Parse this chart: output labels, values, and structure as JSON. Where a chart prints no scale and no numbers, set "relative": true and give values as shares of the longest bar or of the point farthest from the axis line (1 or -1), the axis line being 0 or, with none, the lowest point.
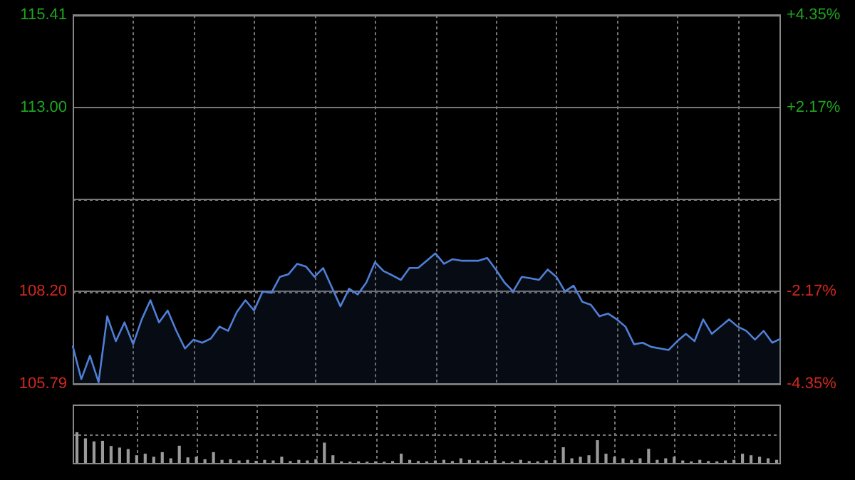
{
  "chart_data": [
    {
      "type": "area",
      "categories": [
        null,
        null,
        null,
        null,
        null,
        null,
        null,
        null,
        null,
        null,
        null,
        null,
        null,
        null,
        null,
        null,
        null,
        null,
        null,
        null,
        null,
        null,
        null,
        null,
        null,
        null,
        null,
        null,
        null,
        null,
        null,
        null,
        null,
        null,
        null,
        null,
        null,
        null,
        null,
        null,
        null,
        null,
        null,
        null,
        null,
        null,
        null,
        null,
        null,
        null,
        null,
        null,
        null,
        null,
        null,
        null,
        null,
        null,
        null,
        null,
        null,
        null,
        null,
        null,
        null,
        null,
        null,
        null,
        null,
        null,
        null,
        null,
        null,
        null,
        null,
        null,
        null,
        null,
        null,
        null,
        null,
        null,
        null
      ],
      "series": [
        {
          "color": "#4f7fd6",
          "values": [
            106.78,
            105.91,
            106.52,
            105.83,
            107.55,
            106.9,
            107.39,
            106.82,
            107.47,
            107.97,
            107.39,
            107.7,
            107.17,
            106.71,
            106.94,
            106.86,
            106.97,
            107.28,
            107.17,
            107.66,
            107.97,
            107.7,
            108.2,
            108.16,
            108.58,
            108.65,
            108.92,
            108.85,
            108.58,
            108.81,
            108.31,
            107.81,
            108.27,
            108.12,
            108.43,
            108.96,
            108.73,
            108.62,
            108.5,
            108.81,
            108.81,
            109.0,
            109.19,
            108.92,
            109.04,
            109.0,
            109.0,
            109.0,
            109.07,
            108.77,
            108.43,
            108.2,
            108.58,
            108.54,
            108.5,
            108.77,
            108.58,
            108.2,
            108.35,
            107.93,
            107.85,
            107.55,
            107.62,
            107.47,
            107.28,
            106.82,
            106.86,
            106.75,
            106.71,
            106.67,
            106.9,
            107.09,
            106.9,
            107.47,
            107.09,
            107.28,
            107.47,
            107.28,
            107.17,
            106.94,
            107.17,
            106.86,
            106.97
          ]
        }
      ],
      "ylim": [
        105.79,
        115.41
      ],
      "yticks": [
        105.79,
        {
          "value": 108.2,
          "label": "108.20"
        },
        {
          "value": 110.6,
          "label": null
        },
        {
          "value": 113.0,
          "label": "113.00"
        },
        115.41
      ],
      "y2lim": [
        -4.35,
        4.35
      ],
      "y2ticks": [
        {
          "value": -4.35,
          "label": "-4.35%"
        },
        {
          "value": -2.17,
          "label": "-2.17%"
        },
        {
          "value": 2.17,
          "label": "+2.17%"
        },
        {
          "value": 4.35,
          "label": "+4.35%"
        }
      ],
      "tick_labels": "y",
      "grid": true,
      "legend": false,
      "marker": "none",
      "line_style": "solid"
    },
    {
      "type": "bar",
      "relative": true,
      "grid": true,
      "legend": false,
      "color": "#9a9a9a",
      "tick_labels": false,
      "categories": [
        null,
        null,
        null,
        null,
        null,
        null,
        null,
        null,
        null,
        null,
        null,
        null,
        null,
        null,
        null,
        null,
        null,
        null,
        null,
        null,
        null,
        null,
        null,
        null,
        null,
        null,
        null,
        null,
        null,
        null,
        null,
        null,
        null,
        null,
        null,
        null,
        null,
        null,
        null,
        null,
        null,
        null,
        null,
        null,
        null,
        null,
        null,
        null,
        null,
        null,
        null,
        null,
        null,
        null,
        null,
        null,
        null,
        null,
        null,
        null,
        null,
        null,
        null,
        null,
        null,
        null,
        null,
        null,
        null,
        null,
        null,
        null,
        null,
        null,
        null,
        null,
        null,
        null,
        null,
        null,
        null,
        null,
        null
      ],
      "values": [
        1.0,
        0.8,
        0.7,
        0.72,
        0.55,
        0.5,
        0.45,
        0.25,
        0.3,
        0.2,
        0.35,
        0.15,
        0.56,
        0.18,
        0.2,
        0.12,
        0.35,
        0.1,
        0.12,
        0.08,
        0.1,
        0.07,
        0.1,
        0.08,
        0.2,
        0.06,
        0.1,
        0.08,
        0.12,
        0.66,
        0.25,
        0.05,
        0.04,
        0.05,
        0.04,
        0.05,
        0.04,
        0.06,
        0.3,
        0.1,
        0.06,
        0.05,
        0.08,
        0.1,
        0.06,
        0.15,
        0.1,
        0.08,
        0.06,
        0.1,
        0.05,
        0.04,
        0.1,
        0.06,
        0.05,
        0.08,
        0.1,
        0.51,
        0.15,
        0.2,
        0.25,
        0.74,
        0.3,
        0.2,
        0.15,
        0.1,
        0.15,
        0.46,
        0.1,
        0.15,
        0.2,
        0.08,
        0.05,
        0.1,
        0.06,
        0.05,
        0.08,
        0.1,
        0.3,
        0.25,
        0.2,
        0.15,
        0.1
      ]
    }
  ]
}
